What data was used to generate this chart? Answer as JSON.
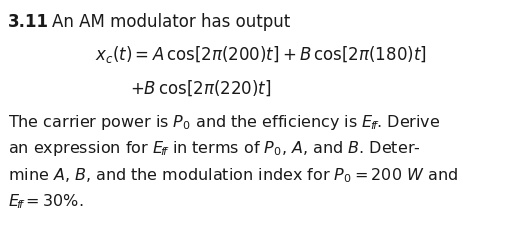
{
  "title_number": "3.11",
  "title_text": "An AM modulator has output",
  "eq_line1": "$x_c(t) = A\\,\\cos[2\\pi(200)t] + B\\,\\cos[2\\pi(180)t]$",
  "eq_line2": "$+B\\,\\cos[2\\pi(220)t]$",
  "body_line1": "The carrier power is $P_0$ and the efficiency is $E_{\\!f\\!f}$. Derive",
  "body_line2": "an expression for $E_{\\!f\\!f}$ in terms of $P_0$, $A$, and $B$. Deter-",
  "body_line3": "mine $A$, $B$, and the modulation index for $P_0 = 200\\ W$ and",
  "body_line4": "$E_{\\!f\\!f} = 30\\%$.",
  "bg_color": "#ffffff",
  "text_color": "#1a1a1a",
  "font_size_heading": 12.0,
  "font_size_eq": 12.0,
  "font_size_body": 11.5
}
